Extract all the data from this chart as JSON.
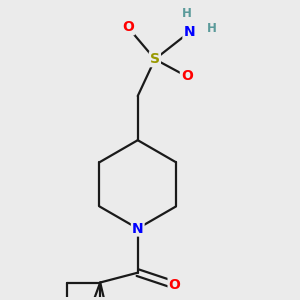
{
  "bg_color": "#ebebeb",
  "bond_color": "#1a1a1a",
  "bond_width": 1.6,
  "atom_colors": {
    "N": "#0000ff",
    "O": "#ff0000",
    "S": "#999900",
    "H": "#5a9a9a",
    "C": "#1a1a1a"
  },
  "font_size_atom": 10,
  "font_size_H": 8.5,
  "figsize": [
    3.0,
    3.0
  ],
  "dpi": 100
}
